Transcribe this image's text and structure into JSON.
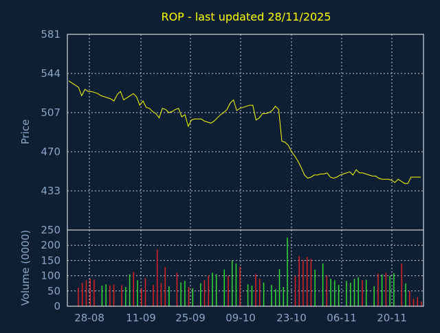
{
  "chart_data": [
    {
      "type": "line",
      "title": "ROP - last updated 28/11/2025",
      "ylabel": "Price",
      "xlabel": "",
      "y_ticks": [
        433,
        470,
        507,
        544,
        581
      ],
      "x_ticks": [
        "28-08",
        "11-09",
        "25-09",
        "09-10",
        "23-10",
        "06-11",
        "20-11"
      ],
      "ylim": [
        396,
        581
      ],
      "grid": true,
      "line_color": "#ffff00",
      "series": [
        {
          "values": [
            537,
            535,
            533,
            531,
            523,
            529,
            527,
            527,
            526,
            525,
            523,
            522,
            521,
            520,
            518,
            524,
            527,
            519,
            521,
            523,
            525,
            522,
            514,
            518,
            512,
            511,
            508,
            506,
            502,
            511,
            510,
            507,
            508,
            510,
            511,
            503,
            505,
            494,
            500,
            501,
            501,
            501,
            499,
            498,
            497,
            499,
            502,
            505,
            507,
            510,
            516,
            519,
            509,
            511,
            512,
            513,
            514,
            514,
            500,
            502,
            506,
            506,
            507,
            509,
            513,
            510,
            480,
            479,
            476,
            470,
            466,
            461,
            455,
            448,
            445,
            446,
            448,
            448,
            449,
            449,
            450,
            446,
            445,
            446,
            448,
            449,
            450,
            451,
            448,
            453,
            450,
            450,
            449,
            448,
            447,
            447,
            445,
            444,
            444,
            444,
            443,
            441,
            444,
            442,
            440,
            440,
            446,
            446,
            446,
            446
          ]
        }
      ]
    },
    {
      "type": "bar",
      "ylabel": "Volume (0000)",
      "y_ticks": [
        0,
        50,
        100,
        150,
        200,
        250
      ],
      "ylim": [
        0,
        250
      ],
      "grid": true,
      "up_color": "#33dd33",
      "down_color": "#dd2222",
      "values": [
        61,
        77,
        85,
        90,
        87,
        0,
        68,
        72,
        69,
        71,
        0,
        69,
        63,
        105,
        112,
        85,
        60,
        92,
        0,
        70,
        186,
        76,
        128,
        65,
        0,
        110,
        78,
        83,
        63,
        59,
        0,
        75,
        85,
        101,
        110,
        105,
        0,
        120,
        100,
        150,
        140,
        130,
        0,
        72,
        68,
        105,
        90,
        78,
        0,
        70,
        56,
        122,
        63,
        225,
        0,
        100,
        165,
        150,
        162,
        155,
        120,
        0,
        140,
        100,
        90,
        85,
        70,
        0,
        83,
        77,
        90,
        95,
        85,
        87,
        0,
        65,
        107,
        105,
        110,
        100,
        108,
        0,
        140,
        75,
        50,
        25,
        30,
        15
      ],
      "directions": [
        "down",
        "down",
        "down",
        "down",
        "down",
        "down",
        "up",
        "up",
        "down",
        "down",
        "down",
        "down",
        "up",
        "up",
        "down",
        "up",
        "down",
        "down",
        "down",
        "down",
        "down",
        "down",
        "down",
        "up",
        "up",
        "down",
        "up",
        "up",
        "down",
        "up",
        "up",
        "up",
        "down",
        "down",
        "up",
        "up",
        "down",
        "up",
        "down",
        "up",
        "up",
        "down",
        "down",
        "up",
        "up",
        "down",
        "down",
        "up",
        "up",
        "up",
        "up",
        "up",
        "up",
        "up",
        "up",
        "down",
        "down",
        "down",
        "down",
        "down",
        "up",
        "up",
        "up",
        "down",
        "up",
        "up",
        "up",
        "up",
        "up",
        "up",
        "up",
        "up",
        "down",
        "up",
        "up",
        "up",
        "down",
        "up",
        "down",
        "up",
        "up",
        "up",
        "down",
        "up",
        "down",
        "down",
        "down",
        "down"
      ]
    }
  ]
}
